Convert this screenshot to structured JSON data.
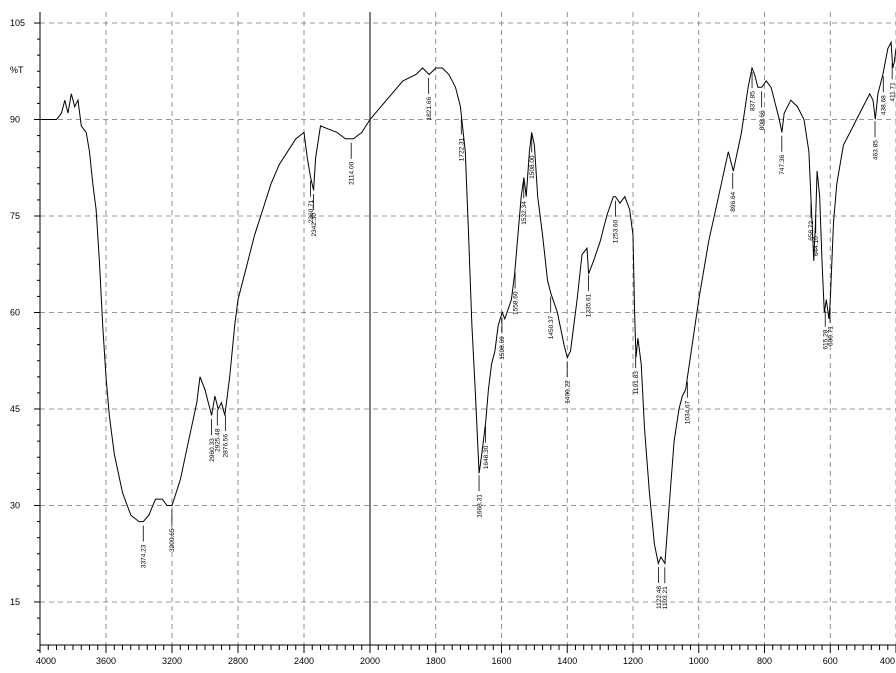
{
  "chart_data": {
    "type": "line",
    "title": "",
    "ylabel": "%T",
    "xlabel": "",
    "xlim": [
      4000,
      400
    ],
    "ylim": [
      7,
      106
    ],
    "grid": true,
    "x_ticks": [
      {
        "value": 4000,
        "label": "4000"
      },
      {
        "value": 3600,
        "label": "3600"
      },
      {
        "value": 3200,
        "label": "3200"
      },
      {
        "value": 2800,
        "label": "2800"
      },
      {
        "value": 2400,
        "label": "2400"
      },
      {
        "value": 2000,
        "label": "2000"
      },
      {
        "value": 1800,
        "label": "1800"
      },
      {
        "value": 1600,
        "label": "1600"
      },
      {
        "value": 1400,
        "label": "1400"
      },
      {
        "value": 1200,
        "label": "1200"
      },
      {
        "value": 1000,
        "label": "1000"
      },
      {
        "value": 800,
        "label": "800"
      },
      {
        "value": 600,
        "label": "600"
      },
      {
        "value": 400,
        "label": "400"
      }
    ],
    "y_ticks": [
      {
        "value": 105,
        "label": "105"
      },
      {
        "value": 90,
        "label": "90"
      },
      {
        "value": 75,
        "label": "75"
      },
      {
        "value": 60,
        "label": "60"
      },
      {
        "value": 45,
        "label": "45"
      },
      {
        "value": 30,
        "label": "30"
      },
      {
        "value": 15,
        "label": "15"
      }
    ],
    "series": [
      {
        "points": [
          [
            4000,
            90
          ],
          [
            3950,
            90
          ],
          [
            3900,
            90
          ],
          [
            3870,
            91
          ],
          [
            3850,
            93
          ],
          [
            3830,
            91
          ],
          [
            3810,
            94
          ],
          [
            3790,
            92
          ],
          [
            3770,
            93
          ],
          [
            3750,
            89
          ],
          [
            3720,
            88
          ],
          [
            3700,
            85
          ],
          [
            3680,
            80
          ],
          [
            3660,
            76
          ],
          [
            3640,
            68
          ],
          [
            3620,
            58
          ],
          [
            3600,
            50
          ],
          [
            3580,
            44
          ],
          [
            3550,
            38
          ],
          [
            3500,
            32
          ],
          [
            3450,
            28.5
          ],
          [
            3400,
            27.5
          ],
          [
            3374,
            27.5
          ],
          [
            3340,
            28.5
          ],
          [
            3300,
            31
          ],
          [
            3260,
            31
          ],
          [
            3230,
            30
          ],
          [
            3200,
            30
          ],
          [
            3150,
            34
          ],
          [
            3100,
            40
          ],
          [
            3050,
            46
          ],
          [
            3030,
            50
          ],
          [
            3000,
            48
          ],
          [
            2980,
            46
          ],
          [
            2960,
            44
          ],
          [
            2940,
            47
          ],
          [
            2920,
            45
          ],
          [
            2900,
            46
          ],
          [
            2880,
            44
          ],
          [
            2850,
            50
          ],
          [
            2820,
            58
          ],
          [
            2800,
            62
          ],
          [
            2750,
            67
          ],
          [
            2700,
            72
          ],
          [
            2650,
            76
          ],
          [
            2600,
            80
          ],
          [
            2550,
            83
          ],
          [
            2500,
            85
          ],
          [
            2450,
            87
          ],
          [
            2400,
            88
          ],
          [
            2380,
            84
          ],
          [
            2360,
            81
          ],
          [
            2342,
            79
          ],
          [
            2330,
            84
          ],
          [
            2300,
            89
          ],
          [
            2250,
            88.5
          ],
          [
            2200,
            88
          ],
          [
            2150,
            87
          ],
          [
            2100,
            87
          ],
          [
            2050,
            88
          ],
          [
            2000,
            90
          ],
          [
            1950,
            93
          ],
          [
            1900,
            96
          ],
          [
            1860,
            97
          ],
          [
            1840,
            98
          ],
          [
            1820,
            97
          ],
          [
            1800,
            98
          ],
          [
            1780,
            98
          ],
          [
            1760,
            97
          ],
          [
            1740,
            95
          ],
          [
            1725,
            92
          ],
          [
            1710,
            85
          ],
          [
            1700,
            72
          ],
          [
            1690,
            58
          ],
          [
            1680,
            48
          ],
          [
            1668,
            35
          ],
          [
            1660,
            38
          ],
          [
            1648,
            43
          ],
          [
            1640,
            48
          ],
          [
            1630,
            52
          ],
          [
            1620,
            54
          ],
          [
            1610,
            58
          ],
          [
            1598,
            60
          ],
          [
            1590,
            59
          ],
          [
            1570,
            62
          ],
          [
            1560,
            66
          ],
          [
            1550,
            72
          ],
          [
            1540,
            78
          ],
          [
            1532,
            81
          ],
          [
            1525,
            78
          ],
          [
            1515,
            85
          ],
          [
            1508,
            88
          ],
          [
            1500,
            86
          ],
          [
            1490,
            78
          ],
          [
            1475,
            72
          ],
          [
            1460,
            65
          ],
          [
            1450,
            63
          ],
          [
            1430,
            60
          ],
          [
            1410,
            55
          ],
          [
            1400,
            53
          ],
          [
            1390,
            54
          ],
          [
            1370,
            62
          ],
          [
            1355,
            69
          ],
          [
            1340,
            70
          ],
          [
            1335,
            66
          ],
          [
            1320,
            68
          ],
          [
            1300,
            71
          ],
          [
            1280,
            75
          ],
          [
            1260,
            78
          ],
          [
            1253,
            78
          ],
          [
            1240,
            77
          ],
          [
            1225,
            78
          ],
          [
            1210,
            76
          ],
          [
            1200,
            72
          ],
          [
            1195,
            60
          ],
          [
            1191,
            53
          ],
          [
            1185,
            56
          ],
          [
            1175,
            52
          ],
          [
            1165,
            42
          ],
          [
            1150,
            32
          ],
          [
            1135,
            24
          ],
          [
            1123,
            21
          ],
          [
            1115,
            22
          ],
          [
            1103,
            21
          ],
          [
            1090,
            30
          ],
          [
            1075,
            40
          ],
          [
            1060,
            45
          ],
          [
            1050,
            47
          ],
          [
            1040,
            48
          ],
          [
            1020,
            55
          ],
          [
            1000,
            62
          ],
          [
            970,
            71
          ],
          [
            940,
            78
          ],
          [
            910,
            85
          ],
          [
            895,
            82
          ],
          [
            870,
            88
          ],
          [
            850,
            95
          ],
          [
            838,
            98
          ],
          [
            830,
            97
          ],
          [
            820,
            95
          ],
          [
            808,
            95
          ],
          [
            795,
            96
          ],
          [
            780,
            95
          ],
          [
            765,
            92
          ],
          [
            755,
            90
          ],
          [
            747,
            88
          ],
          [
            740,
            91
          ],
          [
            720,
            93
          ],
          [
            700,
            92
          ],
          [
            680,
            90
          ],
          [
            665,
            85
          ],
          [
            658,
            77
          ],
          [
            650,
            68
          ],
          [
            645,
            74
          ],
          [
            640,
            82
          ],
          [
            632,
            78
          ],
          [
            625,
            68
          ],
          [
            618,
            60
          ],
          [
            612,
            62
          ],
          [
            604,
            59
          ],
          [
            600,
            62
          ],
          [
            590,
            74
          ],
          [
            580,
            80
          ],
          [
            560,
            86
          ],
          [
            540,
            88
          ],
          [
            520,
            90
          ],
          [
            500,
            92
          ],
          [
            480,
            94
          ],
          [
            470,
            93
          ],
          [
            463,
            90
          ],
          [
            455,
            94
          ],
          [
            440,
            97
          ],
          [
            425,
            101
          ],
          [
            415,
            102
          ],
          [
            410,
            98
          ],
          [
            405,
            99
          ],
          [
            400,
            101
          ]
        ]
      }
    ],
    "annotations": [
      {
        "x": 3374.23,
        "label": "3374.23"
      },
      {
        "x": 3200.65,
        "label": "3200.65"
      },
      {
        "x": 2960.33,
        "label": "2960.33"
      },
      {
        "x": 2925.48,
        "label": "2925.48"
      },
      {
        "x": 2876.56,
        "label": "2876.56"
      },
      {
        "x": 2360.71,
        "label": "2360.71"
      },
      {
        "x": 2342.3,
        "label": "2342.30"
      },
      {
        "x": 2114.0,
        "label": "2114.00"
      },
      {
        "x": 1821.66,
        "label": "1821.66"
      },
      {
        "x": 1722.31,
        "label": "1722.31"
      },
      {
        "x": 1668.31,
        "label": "1668.31"
      },
      {
        "x": 1648.3,
        "label": "1648.30"
      },
      {
        "x": 1598.69,
        "label": "1598.69"
      },
      {
        "x": 1558.6,
        "label": "1558.60"
      },
      {
        "x": 1532.34,
        "label": "1532.34"
      },
      {
        "x": 1508.0,
        "label": "1508.00"
      },
      {
        "x": 1450.37,
        "label": "1450.37"
      },
      {
        "x": 1400.22,
        "label": "1400.22"
      },
      {
        "x": 1335.61,
        "label": "1335.61"
      },
      {
        "x": 1253.6,
        "label": "1253.60"
      },
      {
        "x": 1191.83,
        "label": "1191.83"
      },
      {
        "x": 1122.48,
        "label": "1122.48"
      },
      {
        "x": 1103.21,
        "label": "1103.21"
      },
      {
        "x": 1034.67,
        "label": "1034.67"
      },
      {
        "x": 896.64,
        "label": "896.64"
      },
      {
        "x": 837.85,
        "label": "837.85"
      },
      {
        "x": 808.66,
        "label": "808.66"
      },
      {
        "x": 747.36,
        "label": "747.36"
      },
      {
        "x": 658.72,
        "label": "658.72"
      },
      {
        "x": 644.1,
        "label": "644.10"
      },
      {
        "x": 615.28,
        "label": "615.28"
      },
      {
        "x": 600.71,
        "label": "600.71"
      },
      {
        "x": 463.85,
        "label": "463.85"
      },
      {
        "x": 438.68,
        "label": "438.68"
      },
      {
        "x": 411.71,
        "label": "411.71"
      }
    ]
  }
}
